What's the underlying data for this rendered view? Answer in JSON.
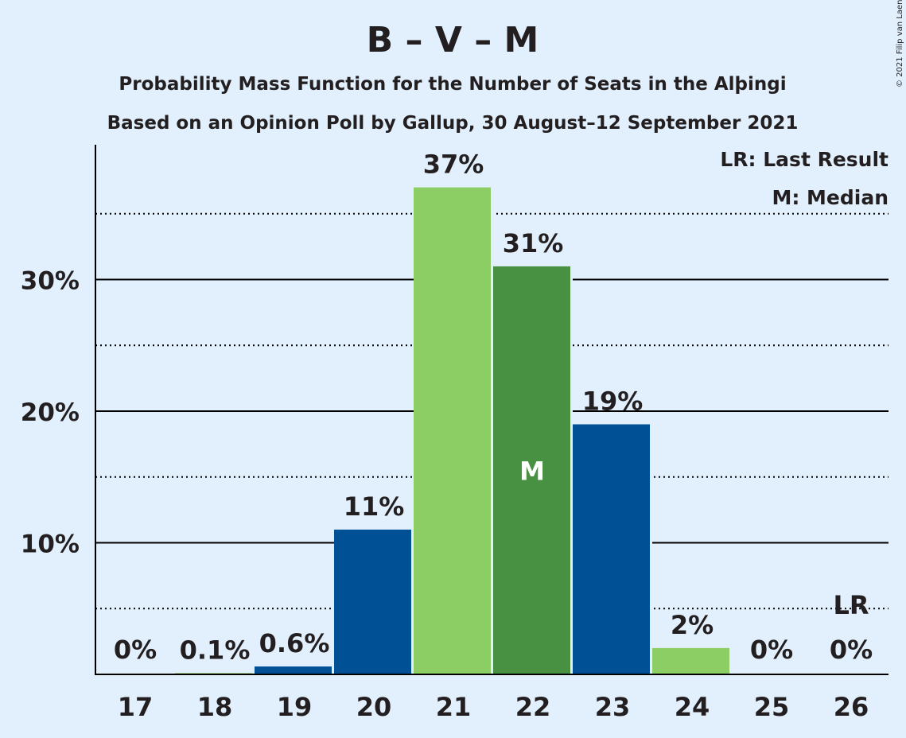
{
  "chart_data": {
    "type": "bar",
    "title": "B – V – M",
    "subtitle": "Probability Mass Function for the Number of Seats in the Alþingi",
    "subtitle2": "Based on an Opinion Poll by Gallup, 30 August–12 September 2021",
    "copyright": "© 2021 Filip van Laenen",
    "legend": {
      "last_result": "LR: Last Result",
      "median": "M: Median"
    },
    "categories": [
      "17",
      "18",
      "19",
      "20",
      "21",
      "22",
      "23",
      "24",
      "25",
      "26"
    ],
    "values": [
      0,
      0.1,
      0.6,
      11,
      37,
      31,
      19,
      2,
      0,
      0
    ],
    "data_labels": [
      "0%",
      "0.1%",
      "0.6%",
      "11%",
      "37%",
      "31%",
      "19%",
      "2%",
      "0%",
      "0%"
    ],
    "bar_colors": [
      "#005096",
      "#8ccd64",
      "#005096",
      "#005096",
      "#8ccd64",
      "#499142",
      "#005096",
      "#8ccd64",
      "#005096",
      "#8ccd64"
    ],
    "median_category": "22",
    "median_marker": "M",
    "last_result_category": "26",
    "last_result_marker": "LR",
    "ylim": [
      0,
      40
    ],
    "y_ticks_major": [
      10,
      20,
      30
    ],
    "y_tick_labels": [
      "10%",
      "20%",
      "30%"
    ],
    "y_ticks_minor": [
      5,
      15,
      25,
      35
    ],
    "grid": true,
    "legend_position": "top-right",
    "colors": {
      "background": "#e2f0fe",
      "blue": "#005096",
      "light_green": "#8ccd64",
      "dark_green": "#499142",
      "text": "#231f20"
    }
  }
}
